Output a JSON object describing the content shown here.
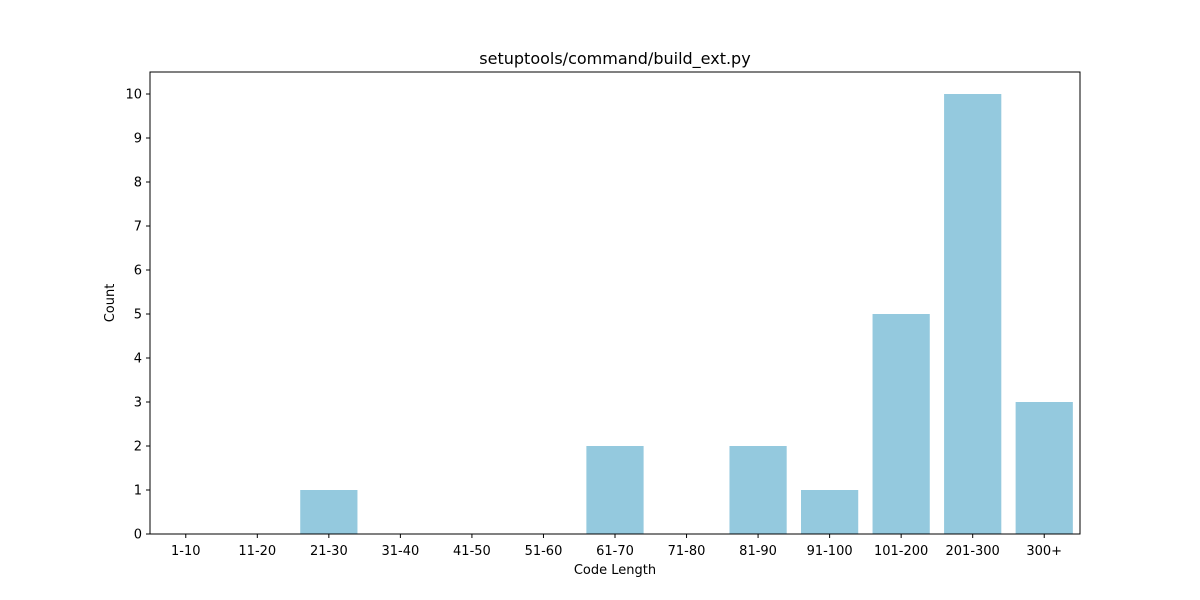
{
  "chart_data": {
    "type": "bar",
    "title": "setuptools/command/build_ext.py",
    "xlabel": "Code Length",
    "ylabel": "Count",
    "categories": [
      "1-10",
      "11-20",
      "21-30",
      "31-40",
      "41-50",
      "51-60",
      "61-70",
      "71-80",
      "81-90",
      "91-100",
      "101-200",
      "201-300",
      "300+"
    ],
    "values": [
      0,
      0,
      1,
      0,
      0,
      0,
      2,
      0,
      2,
      1,
      5,
      10,
      3
    ],
    "ylim": [
      0,
      10.5
    ],
    "yticks": [
      0,
      1,
      2,
      3,
      4,
      5,
      6,
      7,
      8,
      9,
      10
    ],
    "grid": false,
    "legend": "none",
    "bar_color": "#94c9de"
  }
}
